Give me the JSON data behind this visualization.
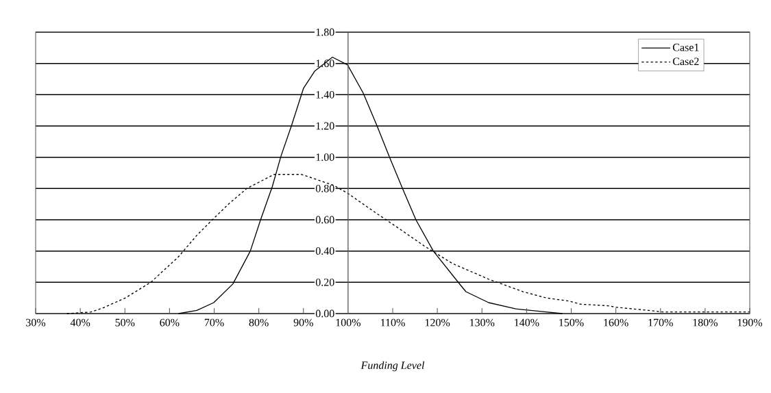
{
  "chart_data": {
    "type": "line",
    "xlabel": "Funding Level",
    "xlim": [
      30,
      190
    ],
    "xticks": [
      {
        "value": 30,
        "label": "30%"
      },
      {
        "value": 40,
        "label": "40%"
      },
      {
        "value": 50,
        "label": "50%"
      },
      {
        "value": 60,
        "label": "60%"
      },
      {
        "value": 70,
        "label": "70%"
      },
      {
        "value": 80,
        "label": "80%"
      },
      {
        "value": 90,
        "label": "90%"
      },
      {
        "value": 100,
        "label": "100%"
      },
      {
        "value": 110,
        "label": "110%"
      },
      {
        "value": 120,
        "label": "120%"
      },
      {
        "value": 130,
        "label": "130%"
      },
      {
        "value": 140,
        "label": "140%"
      },
      {
        "value": 150,
        "label": "150%"
      },
      {
        "value": 160,
        "label": "160%"
      },
      {
        "value": 170,
        "label": "170%"
      },
      {
        "value": 180,
        "label": "180%"
      },
      {
        "value": 190,
        "label": "190%"
      }
    ],
    "ylim": [
      0,
      1.8
    ],
    "yticks": [
      {
        "value": 0,
        "label": "0.00"
      },
      {
        "value": 0.2,
        "label": "0.20"
      },
      {
        "value": 0.4,
        "label": "0.40"
      },
      {
        "value": 0.6,
        "label": "0.60"
      },
      {
        "value": 0.8,
        "label": "0.80"
      },
      {
        "value": 1.0,
        "label": "1.00"
      },
      {
        "value": 1.2,
        "label": "1.20"
      },
      {
        "value": 1.4,
        "label": "1.40"
      },
      {
        "value": 1.6,
        "label": "1.60"
      },
      {
        "value": 1.8,
        "label": "1.80"
      }
    ],
    "grid": "y",
    "legend": "top right",
    "marker": "none",
    "series": [
      {
        "name": "Case1",
        "color": "#000000",
        "line_style": "solid",
        "x": [
          62,
          66.1,
          69.9,
          74.2,
          78.1,
          80.4,
          83.0,
          85.0,
          87.3,
          90.0,
          92.5,
          96.5,
          99.9,
          103.4,
          106.5,
          109.3,
          112.2,
          115.2,
          119.1,
          124.4,
          126.4,
          131.5,
          137.6,
          144.4,
          148
        ],
        "values": [
          0,
          0.02,
          0.07,
          0.19,
          0.4,
          0.6,
          0.81,
          1.01,
          1.2,
          1.44,
          1.55,
          1.64,
          1.59,
          1.41,
          1.2,
          1.0,
          0.8,
          0.6,
          0.4,
          0.21,
          0.14,
          0.07,
          0.03,
          0.01,
          0
        ]
      },
      {
        "name": "Case2",
        "color": "#000000",
        "line_style": "dashed",
        "x": [
          37,
          42.4,
          45.0,
          50.1,
          55.8,
          61.9,
          66.1,
          69.6,
          73.2,
          77.3,
          83.4,
          89.6,
          96.8,
          99.9,
          105.4,
          111.1,
          117.2,
          123.4,
          131.5,
          139.2,
          144.4,
          149.5,
          152.1,
          158.2,
          160.2,
          167.4,
          170.5,
          190
        ],
        "values": [
          0,
          0.01,
          0.035,
          0.1,
          0.2,
          0.36,
          0.5,
          0.6,
          0.7,
          0.8,
          0.89,
          0.89,
          0.82,
          0.77,
          0.66,
          0.55,
          0.43,
          0.32,
          0.22,
          0.14,
          0.1,
          0.08,
          0.06,
          0.05,
          0.04,
          0.02,
          0.01,
          0.01
        ]
      }
    ]
  }
}
